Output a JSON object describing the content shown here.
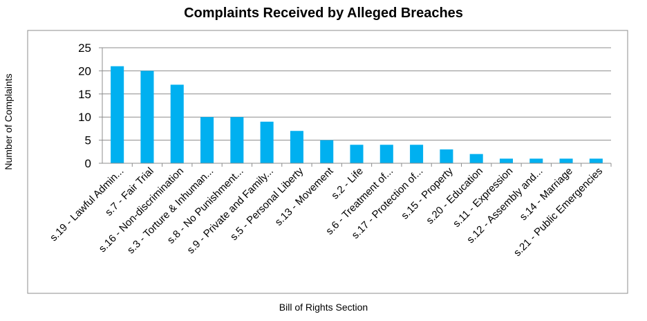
{
  "chart_data": {
    "type": "bar",
    "title": "Complaints Received by Alleged Breaches",
    "xlabel": "Bill of Rights Section",
    "ylabel": "Number of Complaints",
    "ylim": [
      0,
      25
    ],
    "yticks": [
      0,
      5,
      10,
      15,
      20,
      25
    ],
    "grid": true,
    "categories": [
      "s.19 - Lawful Admin...",
      "s.7 - Fair Trial",
      "s.16 - Non-discrimination",
      "s.3 - Torture & Inhuman...",
      "s.8 - No Punishment...",
      "s.9 - Private and Family...",
      "s.5 - Personal Liberty",
      "s.13 - Movement",
      "s.2 - Life",
      "s.6 - Treatment of...",
      "s.17 - Protection of...",
      "s.15 - Property",
      "s.20 - Education",
      "s.11 - Expression",
      "s.12 - Assembly and...",
      "s.14 - Marriage",
      "s.21 - Public Emergencies"
    ],
    "values": [
      21,
      20,
      17,
      10,
      10,
      9,
      7,
      5,
      4,
      4,
      4,
      3,
      2,
      1,
      1,
      1,
      1
    ],
    "bar_color": "#00B0F0"
  }
}
